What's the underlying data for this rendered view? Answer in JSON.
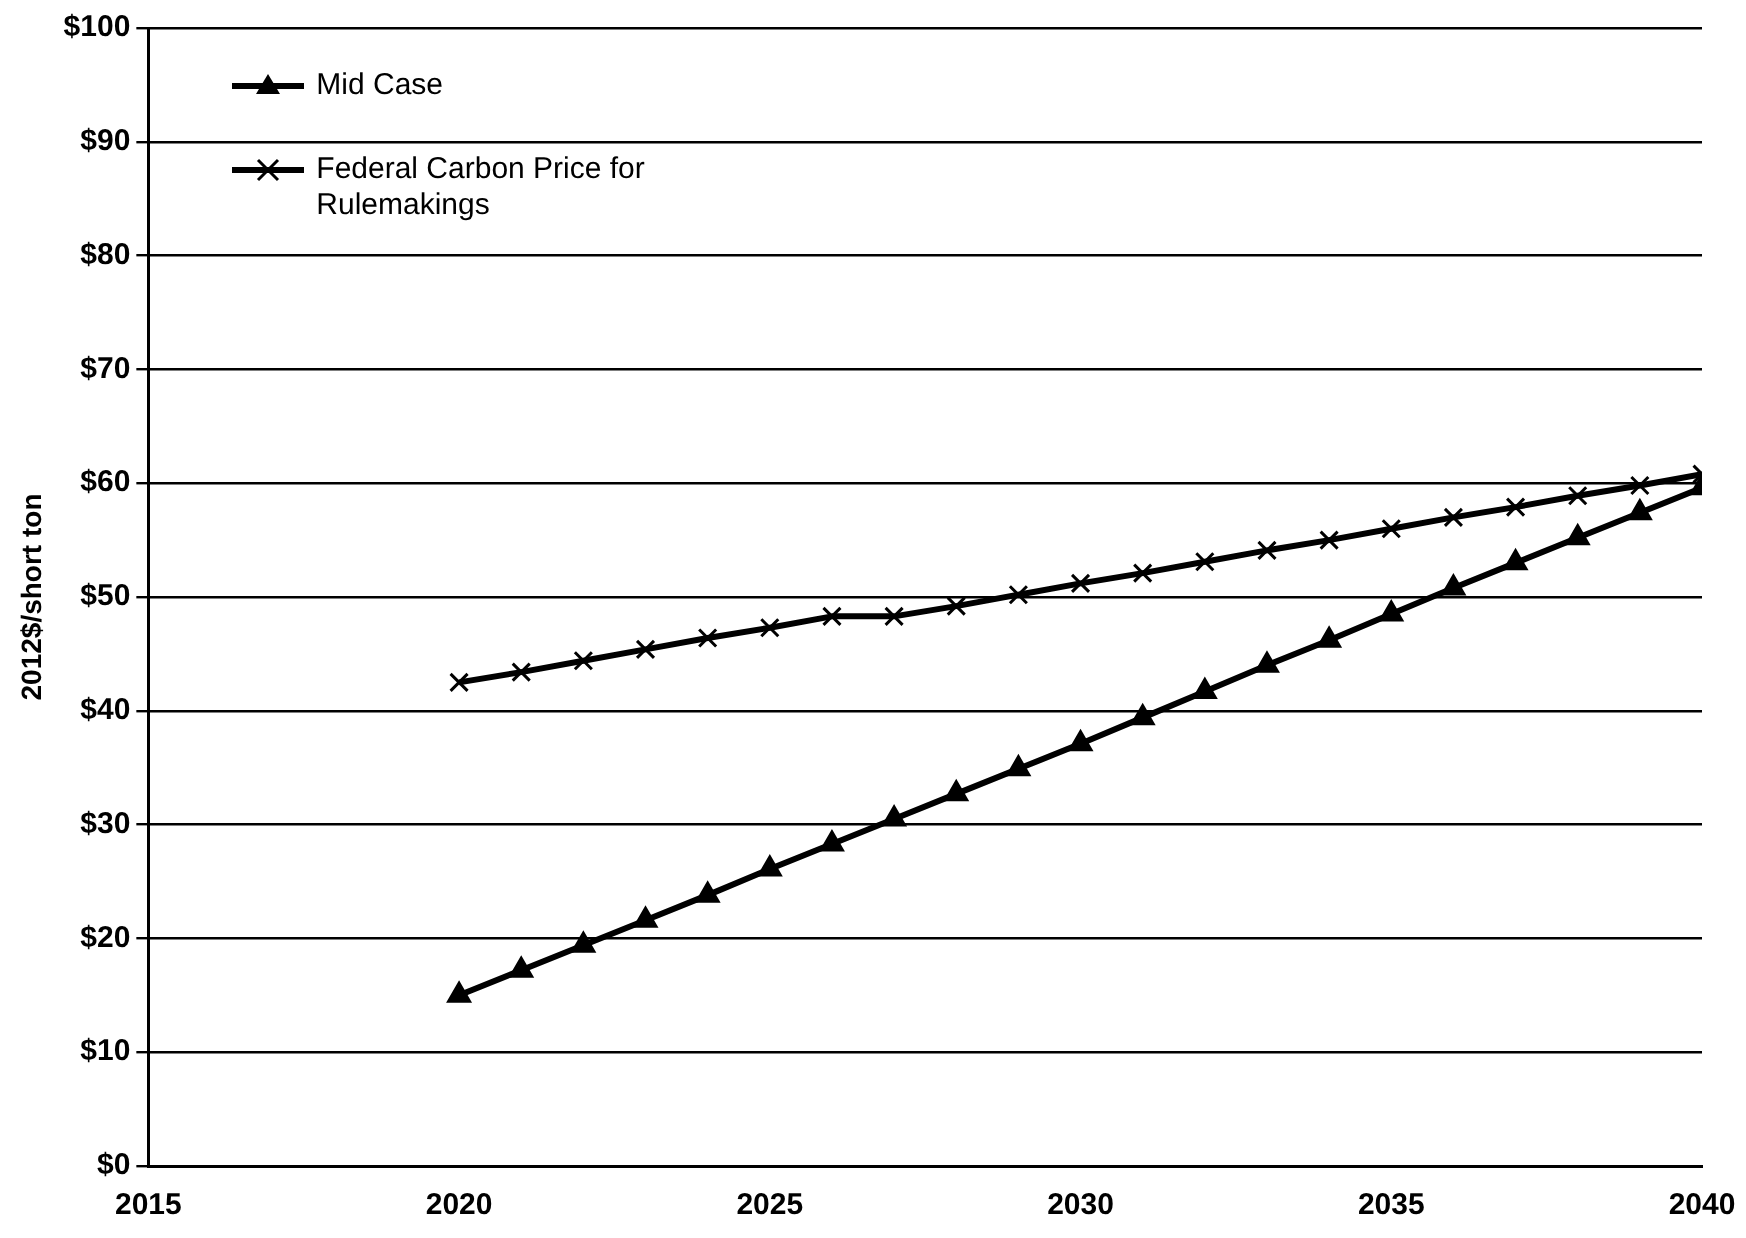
{
  "chart_data": {
    "type": "line",
    "ylabel": "2012$/short ton",
    "x": [
      2020,
      2021,
      2022,
      2023,
      2024,
      2025,
      2026,
      2027,
      2028,
      2029,
      2030,
      2031,
      2032,
      2033,
      2034,
      2035,
      2036,
      2037,
      2038,
      2039,
      2040
    ],
    "series": [
      {
        "name": "Mid Case",
        "color": "#000000",
        "marker": "triangle",
        "values": [
          15,
          17.2,
          19.4,
          21.6,
          23.8,
          26.1,
          28.3,
          30.5,
          32.7,
          34.9,
          37.1,
          39.4,
          41.7,
          44.0,
          46.2,
          48.5,
          50.8,
          53.0,
          55.2,
          57.4,
          59.6
        ]
      },
      {
        "name": "Federal Carbon Price for Rulemakings",
        "color": "#000000",
        "marker": "cross",
        "values": [
          42.5,
          43.4,
          44.4,
          45.4,
          46.4,
          47.3,
          48.3,
          48.3,
          49.2,
          50.2,
          51.2,
          52.1,
          53.1,
          54.1,
          55.0,
          56.0,
          57.0,
          57.9,
          58.9,
          59.8,
          60.8
        ]
      }
    ],
    "xlim": [
      2015,
      2040
    ],
    "xticks": [
      2015,
      2020,
      2025,
      2030,
      2035,
      2040
    ],
    "ylim": [
      0,
      100
    ],
    "yticks": [
      {
        "value": 0,
        "label": "$0"
      },
      {
        "value": 10,
        "label": "$10"
      },
      {
        "value": 20,
        "label": "$20"
      },
      {
        "value": 30,
        "label": "$30"
      },
      {
        "value": 40,
        "label": "$40"
      },
      {
        "value": 50,
        "label": "$50"
      },
      {
        "value": 60,
        "label": "$60"
      },
      {
        "value": 70,
        "label": "$70"
      },
      {
        "value": 80,
        "label": "$80"
      },
      {
        "value": 90,
        "label": "$90"
      },
      {
        "value": 100,
        "label": "$100"
      }
    ],
    "grid": "y",
    "legend": "top left",
    "line_style": "solid"
  }
}
